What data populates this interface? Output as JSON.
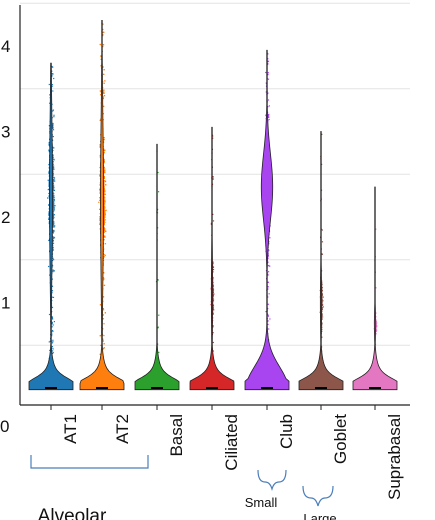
{
  "chart_data": {
    "type": "violin",
    "title": "",
    "xlabel": "",
    "ylabel": "",
    "ylim": [
      0,
      4.5
    ],
    "yticks": [
      0,
      1,
      2,
      3,
      4
    ],
    "grid": true,
    "categories": [
      "AT1",
      "AT2",
      "Basal",
      "Ciliated",
      "Club",
      "Goblet",
      "Suprabasal"
    ],
    "colors": [
      "#1f77b4",
      "#ff7f0e",
      "#2ca02c",
      "#d62728",
      "#a845f0",
      "#8c564b",
      "#e377c2"
    ],
    "max_values": [
      3.8,
      4.3,
      2.85,
      3.05,
      3.95,
      3.0,
      2.35
    ],
    "dense_band": [
      [
        1.0,
        3.5
      ],
      [
        0.9,
        3.5
      ],
      [
        0,
        0
      ],
      [
        0.4,
        1.8
      ],
      [
        1.0,
        3.5
      ],
      [
        0.5,
        1.5
      ],
      [
        0.5,
        1.0
      ]
    ],
    "groups": [
      {
        "label": "Alveolar",
        "categories": [
          "AT1",
          "AT2"
        ]
      },
      {
        "label": "Small",
        "categories": [
          "Club"
        ]
      },
      {
        "label": "Large",
        "categories": [
          "Goblet"
        ]
      }
    ]
  }
}
